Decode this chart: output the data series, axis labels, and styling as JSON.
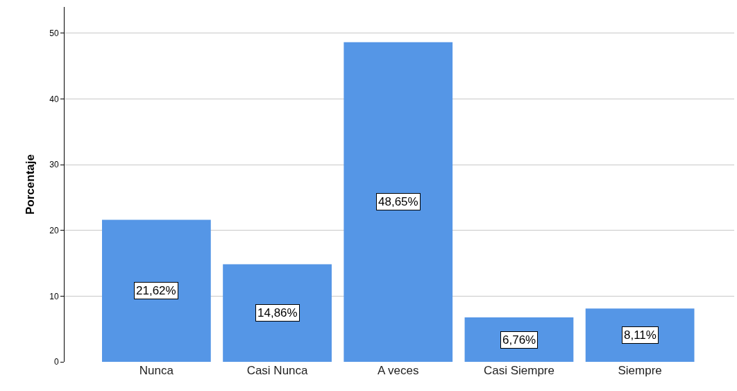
{
  "chart_data": {
    "type": "bar",
    "ylabel": "Porcentaje",
    "categories": [
      "Nunca",
      "Casi Nunca",
      "A veces",
      "Casi Siempre",
      "Siempre"
    ],
    "values": [
      21.62,
      14.86,
      48.65,
      6.76,
      8.11
    ],
    "value_labels": [
      "21,62%",
      "14,86%",
      "48,65%",
      "6,76%",
      "8,11%"
    ],
    "color": "#5596e6",
    "ylim": [
      0,
      54
    ],
    "yticks": [
      0,
      10,
      20,
      30,
      40,
      50
    ],
    "grid": "y"
  }
}
